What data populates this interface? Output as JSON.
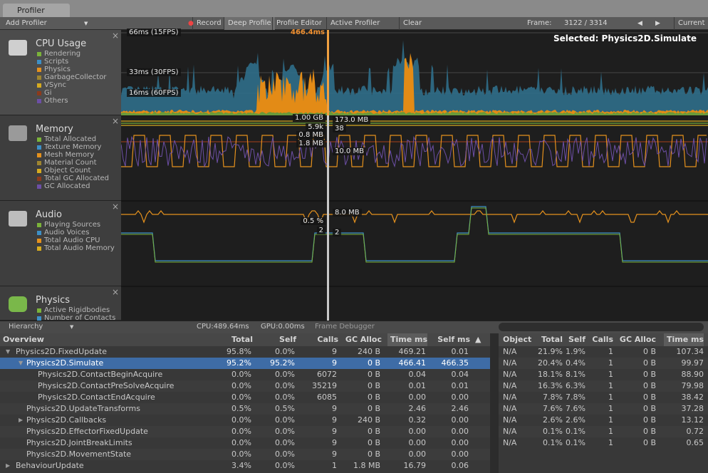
{
  "window": {
    "tab": "Profiler"
  },
  "toolbar": {
    "add_profiler": "Add Profiler",
    "buttons": [
      "Record",
      "Deep Profile",
      "Profile Editor",
      "Active Profiler",
      "Clear"
    ],
    "frame_label": "Frame:",
    "frame_value": "3122 / 3314",
    "current": "Current"
  },
  "panels": [
    {
      "title": "CPU Usage",
      "legend": [
        {
          "name": "Rendering",
          "color": "#7bb33a"
        },
        {
          "name": "Scripts",
          "color": "#3d8fc6"
        },
        {
          "name": "Physics",
          "color": "#e5911d"
        },
        {
          "name": "GarbageCollector",
          "color": "#9e8530"
        },
        {
          "name": "VSync",
          "color": "#d6ab20"
        },
        {
          "name": "Gi",
          "color": "#8c3a1c"
        },
        {
          "name": "Others",
          "color": "#6d4fa6"
        }
      ],
      "labels": [
        "66ms (15FPS)",
        "33ms (30FPS)",
        "16ms (60FPS)",
        "466.4ms",
        "Selected: Physics2D.Simulate"
      ]
    },
    {
      "title": "Memory",
      "legend": [
        {
          "name": "Total Allocated",
          "color": "#7bb33a"
        },
        {
          "name": "Texture Memory",
          "color": "#3d8fc6"
        },
        {
          "name": "Mesh Memory",
          "color": "#e5911d"
        },
        {
          "name": "Material Count",
          "color": "#9e8530"
        },
        {
          "name": "Object Count",
          "color": "#d6ab20"
        },
        {
          "name": "Total GC Allocated",
          "color": "#8c3a1c"
        },
        {
          "name": "GC Allocated",
          "color": "#6d4fa6"
        }
      ],
      "labels": [
        "1.00 GB",
        "173.0 MB",
        "5.9k",
        "38",
        "0.8 MB",
        "1.8 MB",
        "10.0 MB"
      ]
    },
    {
      "title": "Audio",
      "legend": [
        {
          "name": "Playing Sources",
          "color": "#7bb33a"
        },
        {
          "name": "Audio Voices",
          "color": "#3d8fc6"
        },
        {
          "name": "Total Audio CPU",
          "color": "#e5911d"
        },
        {
          "name": "Total Audio Memory",
          "color": "#d6ab20"
        }
      ],
      "labels": [
        "8.0 MB",
        "0.5 %",
        "2",
        "2"
      ]
    },
    {
      "title": "Physics",
      "legend": [
        {
          "name": "Active Rigidbodies",
          "color": "#7bb33a"
        },
        {
          "name": "Number of Contacts",
          "color": "#3d8fc6"
        }
      ],
      "labels": []
    }
  ],
  "hierarchy_bar": {
    "view": "Hierarchy",
    "cpu": "CPU:489.64ms",
    "gpu": "GPU:0.00ms",
    "frame_debugger": "Frame Debugger"
  },
  "table": {
    "headers": [
      "Overview",
      "Total",
      "Self",
      "Calls",
      "GC Alloc",
      "Time ms",
      "Self ms"
    ],
    "rows": [
      [
        "Physics2D.FixedUpdate",
        "95.8%",
        "0.0%",
        "9",
        "240 B",
        "469.21",
        "0.01"
      ],
      [
        "Physics2D.Simulate",
        "95.2%",
        "95.2%",
        "9",
        "0 B",
        "466.41",
        "466.35"
      ],
      [
        "Physics2D.ContactBeginAcquire",
        "0.0%",
        "0.0%",
        "6072",
        "0 B",
        "0.04",
        "0.04"
      ],
      [
        "Physics2D.ContactPreSolveAcquire",
        "0.0%",
        "0.0%",
        "35219",
        "0 B",
        "0.01",
        "0.01"
      ],
      [
        "Physics2D.ContactEndAcquire",
        "0.0%",
        "0.0%",
        "6085",
        "0 B",
        "0.00",
        "0.00"
      ],
      [
        "Physics2D.UpdateTransforms",
        "0.5%",
        "0.5%",
        "9",
        "0 B",
        "2.46",
        "2.46"
      ],
      [
        "Physics2D.Callbacks",
        "0.0%",
        "0.0%",
        "9",
        "240 B",
        "0.32",
        "0.00"
      ],
      [
        "Physics2D.EffectorFixedUpdate",
        "0.0%",
        "0.0%",
        "9",
        "0 B",
        "0.00",
        "0.00"
      ],
      [
        "Physics2D.JointBreakLimits",
        "0.0%",
        "0.0%",
        "9",
        "0 B",
        "0.00",
        "0.00"
      ],
      [
        "Physics2D.MovementState",
        "0.0%",
        "0.0%",
        "9",
        "0 B",
        "0.00",
        "0.00"
      ],
      [
        "BehaviourUpdate",
        "3.4%",
        "0.0%",
        "1",
        "1.8 MB",
        "16.79",
        "0.06"
      ]
    ]
  },
  "details": {
    "headers": [
      "Object",
      "Total",
      "Self",
      "Calls",
      "GC Alloc",
      "Time ms"
    ],
    "rows": [
      [
        "N/A",
        "21.9%",
        "1.9%",
        "1",
        "0 B",
        "107.34"
      ],
      [
        "N/A",
        "20.4%",
        "0.4%",
        "1",
        "0 B",
        "99.97"
      ],
      [
        "N/A",
        "18.1%",
        "8.1%",
        "1",
        "0 B",
        "88.90"
      ],
      [
        "N/A",
        "16.3%",
        "6.3%",
        "1",
        "0 B",
        "79.98"
      ],
      [
        "N/A",
        "7.8%",
        "7.8%",
        "1",
        "0 B",
        "38.42"
      ],
      [
        "N/A",
        "7.6%",
        "7.6%",
        "1",
        "0 B",
        "37.28"
      ],
      [
        "N/A",
        "2.6%",
        "2.6%",
        "1",
        "0 B",
        "13.12"
      ],
      [
        "N/A",
        "0.1%",
        "0.1%",
        "1",
        "0 B",
        "0.72"
      ],
      [
        "N/A",
        "0.1%",
        "0.1%",
        "1",
        "0 B",
        "0.65"
      ]
    ]
  }
}
